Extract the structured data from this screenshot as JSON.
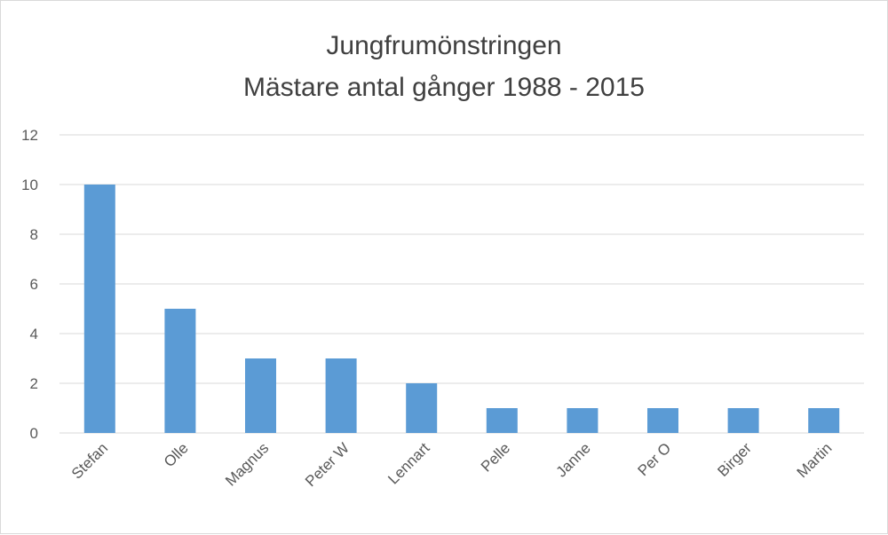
{
  "chart_data": {
    "type": "bar",
    "title": "Jungfrumönstringen",
    "subtitle": "Mästare antal gånger 1988 - 2015",
    "xlabel": "",
    "ylabel": "",
    "categories": [
      "Stefan",
      "Olle",
      "Magnus",
      "Peter W",
      "Lennart",
      "Pelle",
      "Janne",
      "Per O",
      "Birger",
      "Martin"
    ],
    "values": [
      10,
      5,
      3,
      3,
      2,
      1,
      1,
      1,
      1,
      1
    ],
    "ylim": [
      0,
      12
    ],
    "yticks": [
      "0",
      "2",
      "4",
      "6",
      "8",
      "10",
      "12"
    ],
    "grid": true,
    "legend": "none",
    "bar_color": "#5B9BD5",
    "grid_color": "#d9d9d9"
  }
}
